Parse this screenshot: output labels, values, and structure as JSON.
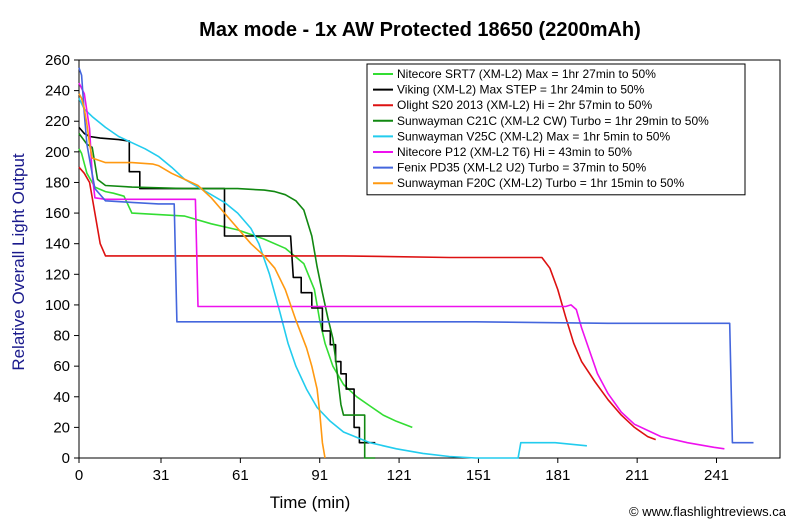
{
  "chart_data": {
    "type": "line",
    "title": "Max mode - 1x AW Protected 18650 (2200mAh)",
    "xlabel": "Time (min)",
    "ylabel": "Relative Overall Light Output",
    "xlim": [
      0,
      265
    ],
    "ylim": [
      0,
      260
    ],
    "xticks": [
      0,
      31,
      61,
      91,
      121,
      151,
      181,
      211,
      241
    ],
    "yticks": [
      0,
      20,
      40,
      60,
      80,
      100,
      120,
      140,
      160,
      180,
      200,
      220,
      240,
      260
    ],
    "grid": false,
    "legend_position": "top-right",
    "credit": "© www.flashlightreviews.ca",
    "series": [
      {
        "name": "Nitecore SRT7 (XM-L2) Max = 1hr 27min to 50%",
        "color": "#33dd33",
        "points": [
          [
            0,
            202
          ],
          [
            1,
            199
          ],
          [
            3,
            186
          ],
          [
            6,
            177
          ],
          [
            10,
            174
          ],
          [
            13,
            173
          ],
          [
            17,
            171
          ],
          [
            20,
            160
          ],
          [
            40,
            158
          ],
          [
            50,
            153
          ],
          [
            60,
            149
          ],
          [
            70,
            143
          ],
          [
            78,
            137
          ],
          [
            85,
            127
          ],
          [
            89,
            110
          ],
          [
            91,
            90
          ],
          [
            93,
            75
          ],
          [
            96,
            60
          ],
          [
            100,
            48
          ],
          [
            105,
            40
          ],
          [
            110,
            34
          ],
          [
            115,
            28
          ],
          [
            120,
            24
          ],
          [
            126,
            20
          ]
        ]
      },
      {
        "name": "Viking (XM-L2) Max STEP = 1hr 24min to 50%",
        "color": "#000000",
        "points": [
          [
            0,
            216
          ],
          [
            2,
            212
          ],
          [
            4,
            210
          ],
          [
            8,
            209
          ],
          [
            15,
            208
          ],
          [
            19,
            207
          ],
          [
            19,
            187
          ],
          [
            23,
            187
          ],
          [
            23,
            176
          ],
          [
            31,
            176
          ],
          [
            31,
            176
          ],
          [
            55,
            176
          ],
          [
            55,
            145
          ],
          [
            72,
            145
          ],
          [
            80,
            145
          ],
          [
            81,
            118
          ],
          [
            84,
            118
          ],
          [
            84,
            108
          ],
          [
            88,
            108
          ],
          [
            88,
            98
          ],
          [
            92,
            98
          ],
          [
            92,
            83
          ],
          [
            95,
            83
          ],
          [
            95,
            74
          ],
          [
            97,
            74
          ],
          [
            97,
            63
          ],
          [
            99,
            63
          ],
          [
            99,
            55
          ],
          [
            101,
            55
          ],
          [
            101,
            45
          ],
          [
            104,
            45
          ],
          [
            104,
            20
          ],
          [
            106,
            20
          ],
          [
            106,
            10
          ],
          [
            112,
            10
          ]
        ]
      },
      {
        "name": "Olight S20 2013 (XM-L2) Hi = 2hr 57min to 50%",
        "color": "#dd1111",
        "points": [
          [
            0,
            190
          ],
          [
            2,
            186
          ],
          [
            4,
            180
          ],
          [
            6,
            160
          ],
          [
            8,
            140
          ],
          [
            10,
            132
          ],
          [
            30,
            132
          ],
          [
            60,
            132
          ],
          [
            100,
            132
          ],
          [
            140,
            131
          ],
          [
            170,
            131
          ],
          [
            175,
            131
          ],
          [
            178,
            124
          ],
          [
            181,
            110
          ],
          [
            184,
            92
          ],
          [
            187,
            75
          ],
          [
            190,
            63
          ],
          [
            195,
            50
          ],
          [
            200,
            38
          ],
          [
            205,
            28
          ],
          [
            210,
            20
          ],
          [
            215,
            14
          ],
          [
            218,
            12
          ]
        ]
      },
      {
        "name": "Sunwayman C21C (XM-L2 CW) Turbo = 1hr 29min to 50%",
        "color": "#118811",
        "points": [
          [
            0,
            212
          ],
          [
            3,
            205
          ],
          [
            5,
            203
          ],
          [
            7,
            182
          ],
          [
            10,
            178
          ],
          [
            20,
            177
          ],
          [
            40,
            176
          ],
          [
            60,
            176
          ],
          [
            70,
            175
          ],
          [
            74,
            174
          ],
          [
            78,
            172
          ],
          [
            82,
            168
          ],
          [
            85,
            162
          ],
          [
            88,
            145
          ],
          [
            90,
            125
          ],
          [
            92,
            108
          ],
          [
            94,
            92
          ],
          [
            96,
            78
          ],
          [
            97,
            65
          ],
          [
            98,
            50
          ],
          [
            99,
            35
          ],
          [
            100,
            28
          ],
          [
            108,
            28
          ],
          [
            108,
            0
          ],
          [
            112,
            0
          ]
        ]
      },
      {
        "name": "Sunwayman V25C (XM-L2) Max = 1hr 5min to 50%",
        "color": "#22ccee",
        "points": [
          [
            0,
            235
          ],
          [
            2,
            228
          ],
          [
            5,
            223
          ],
          [
            10,
            216
          ],
          [
            15,
            210
          ],
          [
            20,
            206
          ],
          [
            25,
            202
          ],
          [
            30,
            197
          ],
          [
            35,
            190
          ],
          [
            40,
            182
          ],
          [
            45,
            177
          ],
          [
            50,
            172
          ],
          [
            55,
            167
          ],
          [
            60,
            160
          ],
          [
            65,
            150
          ],
          [
            68,
            140
          ],
          [
            72,
            120
          ],
          [
            76,
            95
          ],
          [
            79,
            75
          ],
          [
            82,
            60
          ],
          [
            86,
            45
          ],
          [
            90,
            33
          ],
          [
            95,
            24
          ],
          [
            100,
            17
          ],
          [
            110,
            10
          ],
          [
            120,
            6
          ],
          [
            130,
            3
          ],
          [
            140,
            1
          ],
          [
            150,
            0
          ],
          [
            166,
            0
          ],
          [
            167,
            10
          ],
          [
            180,
            10
          ],
          [
            192,
            8
          ]
        ]
      },
      {
        "name": "Nitecore P12 (XM-L2 T6) Hi = 43min to 50%",
        "color": "#ee11ee",
        "points": [
          [
            0,
            245
          ],
          [
            2,
            238
          ],
          [
            4,
            215
          ],
          [
            5,
            185
          ],
          [
            6,
            170
          ],
          [
            10,
            169
          ],
          [
            20,
            169
          ],
          [
            35,
            169
          ],
          [
            44,
            169
          ],
          [
            45,
            99
          ],
          [
            60,
            99
          ],
          [
            100,
            99
          ],
          [
            150,
            99
          ],
          [
            184,
            99
          ],
          [
            186,
            100
          ],
          [
            188,
            97
          ],
          [
            190,
            85
          ],
          [
            193,
            70
          ],
          [
            196,
            55
          ],
          [
            200,
            42
          ],
          [
            205,
            30
          ],
          [
            210,
            22
          ],
          [
            220,
            14
          ],
          [
            230,
            10
          ],
          [
            240,
            7
          ],
          [
            244,
            6
          ]
        ]
      },
      {
        "name": "Fenix PD35 (XM-L2 U2) Turbo = 37min to 50%",
        "color": "#4466dd",
        "points": [
          [
            0,
            255
          ],
          [
            1,
            250
          ],
          [
            2,
            225
          ],
          [
            3,
            205
          ],
          [
            4,
            195
          ],
          [
            6,
            176
          ],
          [
            10,
            168
          ],
          [
            20,
            167
          ],
          [
            30,
            166
          ],
          [
            36,
            166
          ],
          [
            37,
            89
          ],
          [
            50,
            89
          ],
          [
            100,
            89
          ],
          [
            150,
            89
          ],
          [
            200,
            88
          ],
          [
            246,
            88
          ],
          [
            247,
            10
          ],
          [
            255,
            10
          ]
        ]
      },
      {
        "name": "Sunwayman F20C (XM-L2) Turbo = 1hr 15min to 50%",
        "color": "#ff9911",
        "points": [
          [
            0,
            238
          ],
          [
            1,
            235
          ],
          [
            2,
            228
          ],
          [
            3,
            218
          ],
          [
            4,
            205
          ],
          [
            5,
            196
          ],
          [
            10,
            193
          ],
          [
            20,
            193
          ],
          [
            28,
            192
          ],
          [
            30,
            191
          ],
          [
            35,
            186
          ],
          [
            40,
            182
          ],
          [
            45,
            178
          ],
          [
            50,
            170
          ],
          [
            55,
            160
          ],
          [
            60,
            150
          ],
          [
            65,
            140
          ],
          [
            70,
            132
          ],
          [
            74,
            124
          ],
          [
            78,
            110
          ],
          [
            82,
            90
          ],
          [
            86,
            72
          ],
          [
            88,
            60
          ],
          [
            90,
            45
          ],
          [
            91,
            30
          ],
          [
            92,
            10
          ],
          [
            93,
            0
          ]
        ]
      }
    ]
  }
}
